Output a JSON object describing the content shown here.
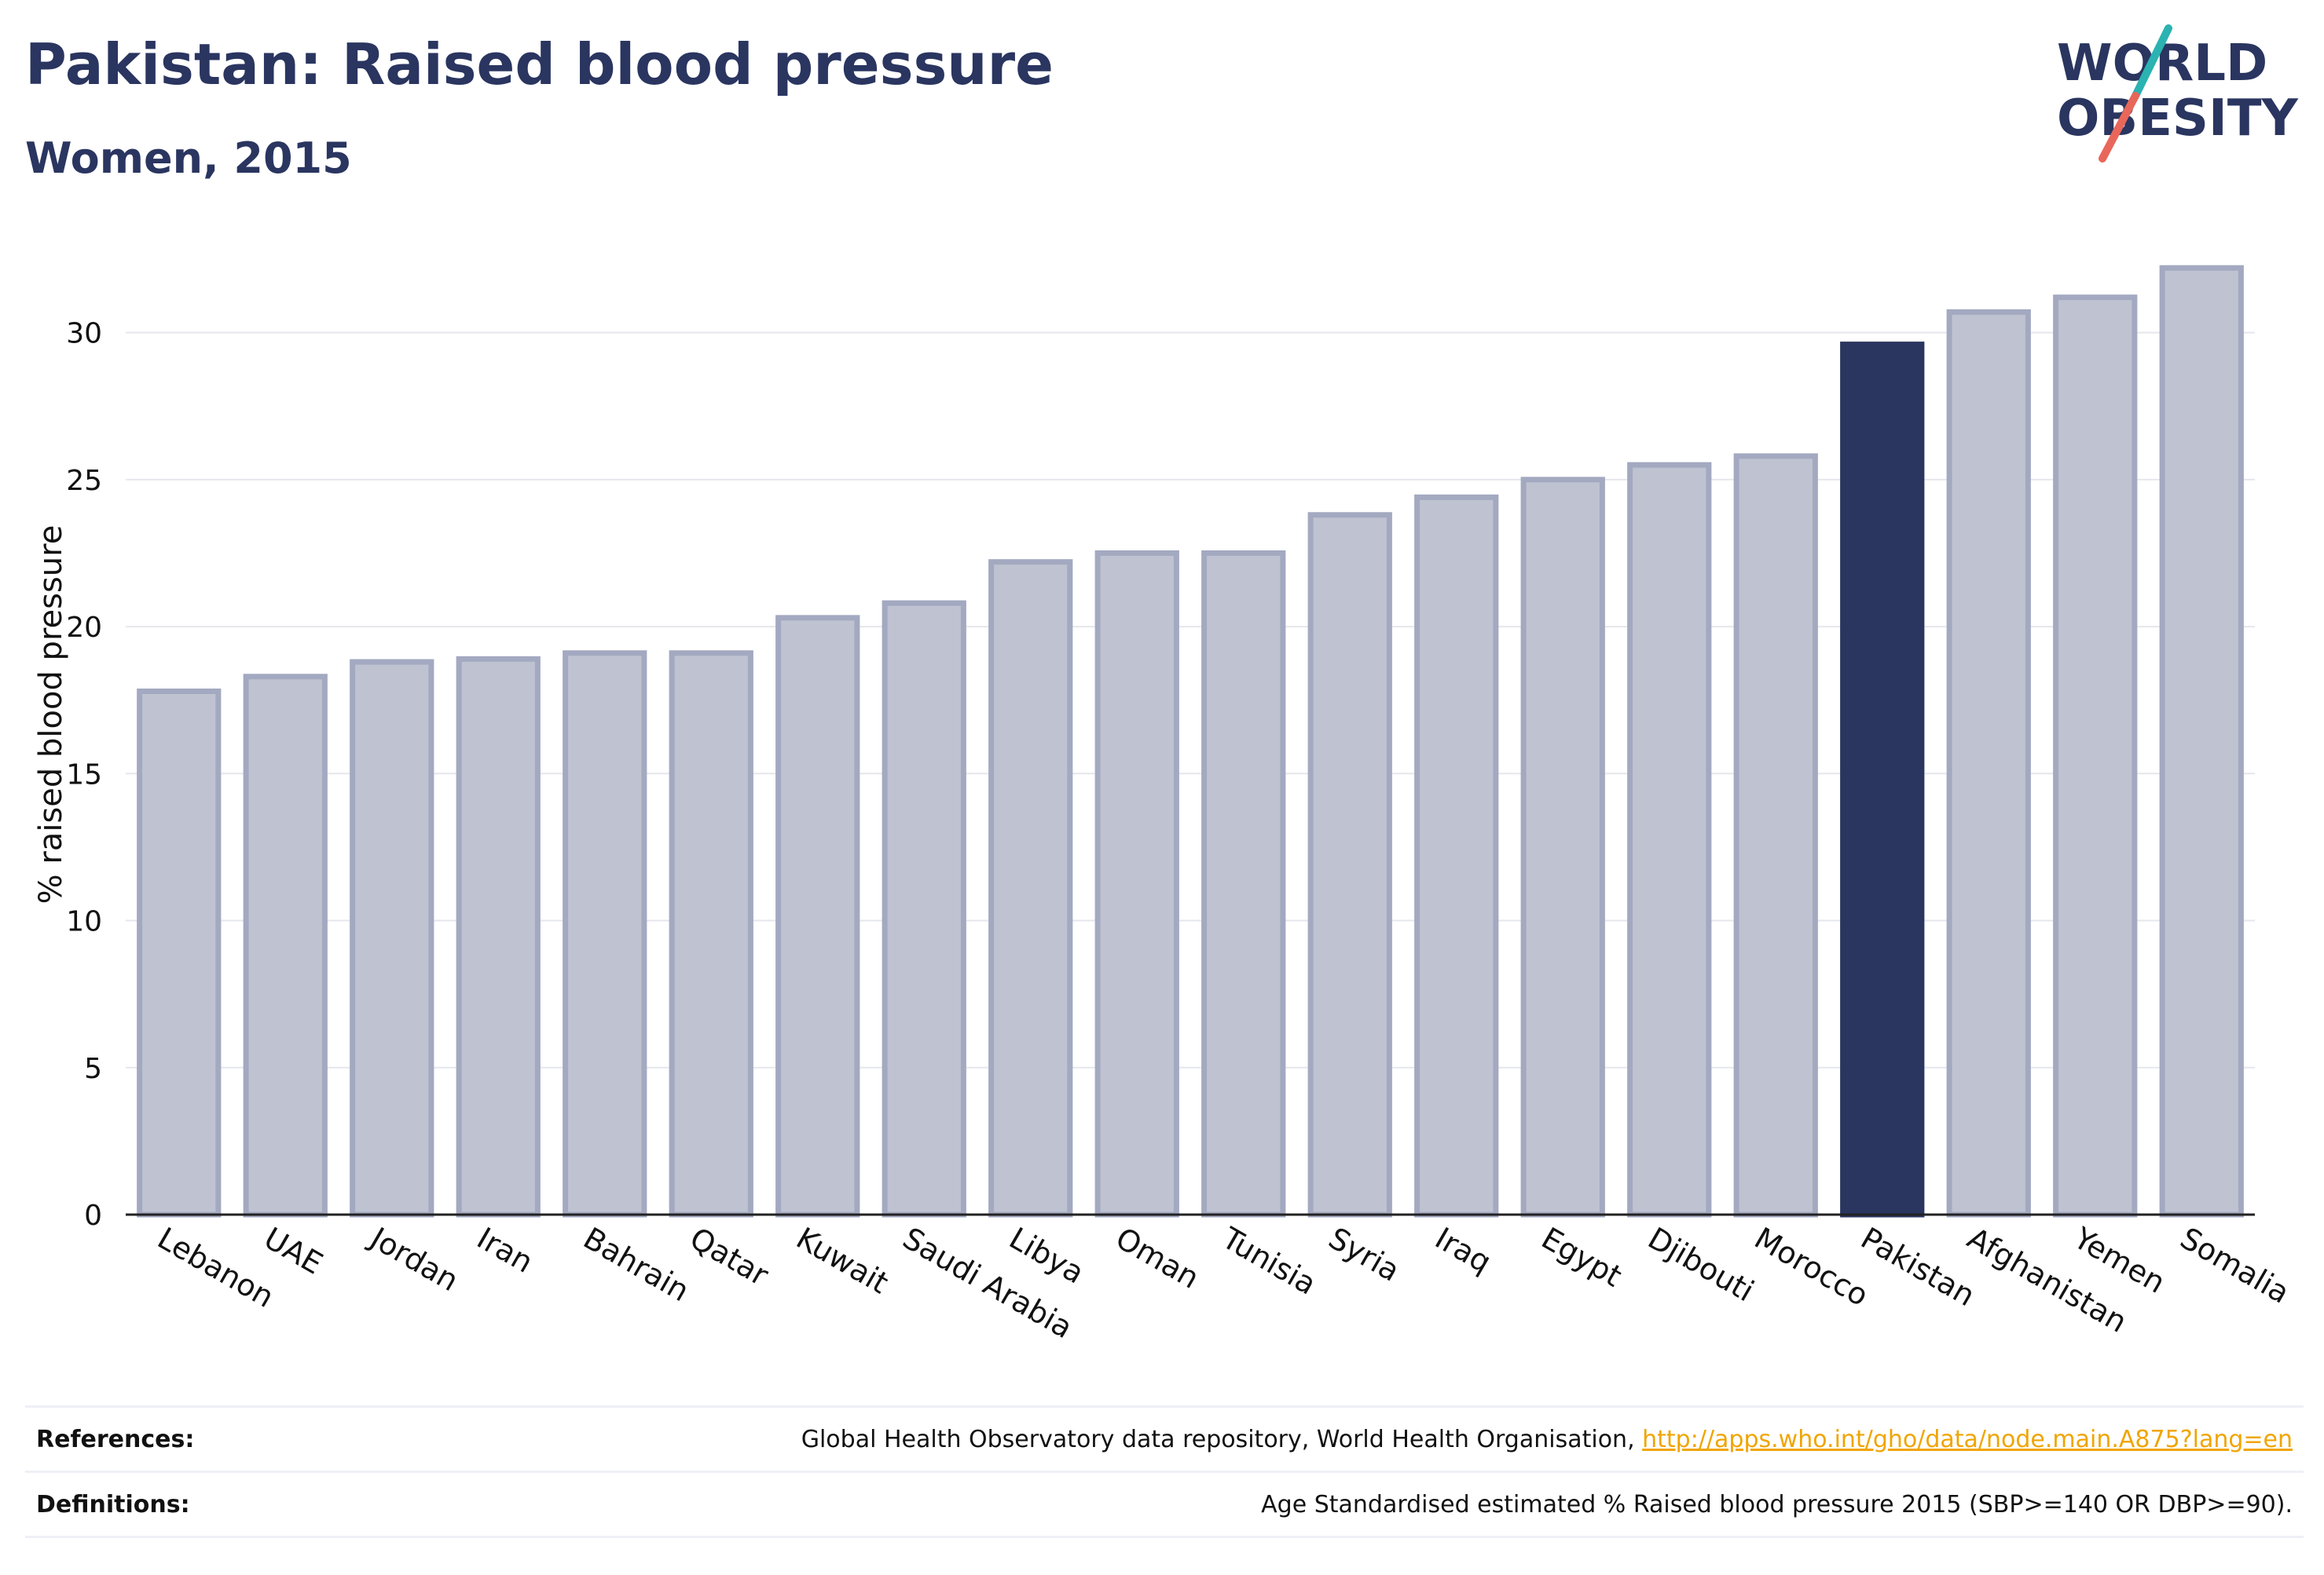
{
  "header": {
    "title": "Pakistan: Raised blood pressure",
    "subtitle": "Women, 2015"
  },
  "logo": {
    "line1": "WORLD",
    "line2": "OBESITY",
    "colors": {
      "text": "#2a3560",
      "slash_teal": "#2bb3b1",
      "slash_coral": "#e8675a"
    }
  },
  "chart_data": {
    "type": "bar",
    "title": "Pakistan: Raised blood pressure",
    "subtitle": "Women, 2015",
    "xlabel": "",
    "ylabel": "% raised blood pressure",
    "ylim": [
      0,
      32.5
    ],
    "yticks": [
      0,
      5,
      10,
      15,
      20,
      25,
      30
    ],
    "grid": true,
    "highlight": "Pakistan",
    "colors": {
      "bar": "#bfc3d1",
      "bar_border": "#a3a9c0",
      "highlight": "#2a3560"
    },
    "categories": [
      "Lebanon",
      "UAE",
      "Jordan",
      "Iran",
      "Bahrain",
      "Qatar",
      "Kuwait",
      "Saudi Arabia",
      "Libya",
      "Oman",
      "Tunisia",
      "Syria",
      "Iraq",
      "Egypt",
      "Djibouti",
      "Morocco",
      "Pakistan",
      "Afghanistan",
      "Yemen",
      "Somalia"
    ],
    "values": [
      17.8,
      18.3,
      18.8,
      18.9,
      19.1,
      19.1,
      20.3,
      20.8,
      22.2,
      22.5,
      22.5,
      23.8,
      24.4,
      25.0,
      25.5,
      25.8,
      29.6,
      30.7,
      31.2,
      32.2
    ]
  },
  "footer": {
    "references_label": "References:",
    "references_text": "Global Health Observatory data repository, World Health Organisation, ",
    "references_link": "http://apps.who.int/gho/data/node.main.A875?lang=en",
    "definitions_label": "Definitions:",
    "definitions_text": "Age Standardised estimated % Raised blood pressure 2015 (SBP>=140 OR DBP>=90)."
  }
}
